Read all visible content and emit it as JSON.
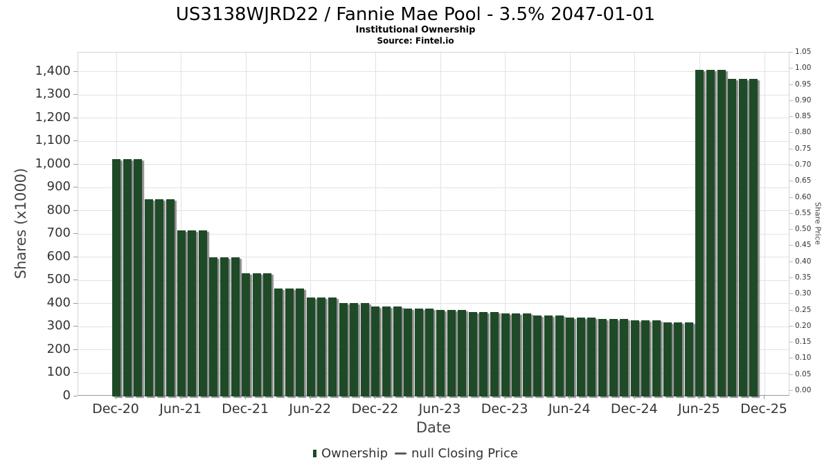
{
  "header": {
    "title": "US3138WJRD22 / Fannie Mae Pool - 3.5% 2047-01-01",
    "subtitle": "Institutional Ownership",
    "source": "Source: Fintel.io"
  },
  "chart_data": {
    "type": "bar",
    "title": "US3138WJRD22 / Fannie Mae Pool - 3.5% 2047-01-01",
    "subtitle": "Institutional Ownership",
    "source": "Source: Fintel.io",
    "xlabel": "Date",
    "x_frequency": "monthly",
    "x_start": "Dec-20",
    "x_end": "Nov-25",
    "x_tick_labels": [
      "Dec-20",
      "Jun-21",
      "Dec-21",
      "Jun-22",
      "Dec-22",
      "Jun-23",
      "Dec-23",
      "Jun-24",
      "Dec-24",
      "Jun-25",
      "Dec-25"
    ],
    "x_tick_month_step": 6,
    "grid": true,
    "legend_position": "bottom",
    "y_left": {
      "label": "Shares (x1000)",
      "tick_labels": [
        "0",
        "100",
        "200",
        "300",
        "400",
        "500",
        "600",
        "700",
        "800",
        "900",
        "1,000",
        "1,100",
        "1,200",
        "1,300",
        "1,400"
      ],
      "tick_step": 100,
      "lim": [
        0,
        1483
      ]
    },
    "y_right": {
      "label": "Share Price",
      "tick_labels": [
        "0.00",
        "0.05",
        "0.10",
        "0.15",
        "0.20",
        "0.25",
        "0.30",
        "0.35",
        "0.40",
        "0.45",
        "0.50",
        "0.55",
        "0.60",
        "0.65",
        "0.70",
        "0.75",
        "0.80",
        "0.85",
        "0.90",
        "0.95",
        "1.00",
        "1.05"
      ],
      "tick_step": 0.05,
      "lim": [
        0,
        1.05
      ]
    },
    "series": [
      {
        "name": "Ownership",
        "type": "column",
        "color": "#1f4a28",
        "values": [
          1022,
          1022,
          1022,
          851,
          851,
          851,
          716,
          716,
          716,
          600,
          600,
          600,
          530,
          530,
          530,
          466,
          466,
          466,
          427,
          427,
          427,
          404,
          404,
          404,
          388,
          388,
          388,
          380,
          380,
          380,
          373,
          373,
          373,
          365,
          365,
          365,
          357,
          357,
          357,
          349,
          349,
          349,
          341,
          341,
          341,
          334,
          334,
          334,
          327,
          327,
          327,
          319,
          319,
          319,
          1408,
          1408,
          1408,
          1370,
          1370,
          1370
        ]
      },
      {
        "name": "null Closing Price",
        "type": "line",
        "color": "#5a5a5a",
        "values": []
      }
    ],
    "legend": [
      {
        "label": "Ownership",
        "marker": "bar",
        "color": "#1f4a28"
      },
      {
        "label": "null Closing Price",
        "marker": "line",
        "color": "#5a5a5a"
      }
    ],
    "colors": {
      "bar": "#1f4a28",
      "bar_shadow": "#6e6e6e",
      "grid": "#e2e2e2",
      "axis_text": "#333333"
    }
  }
}
